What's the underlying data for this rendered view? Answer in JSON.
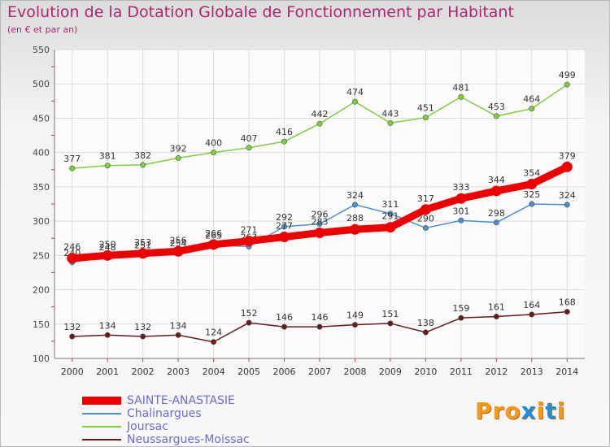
{
  "header": {
    "title": "Evolution de la Dotation Globale de Fonctionnement par Habitant",
    "subtitle": "(en € et par an)"
  },
  "logo": {
    "text": "Proxiti",
    "colors": [
      "#f39a1e",
      "#f39a1e",
      "#f39a1e",
      "#1e8fe0",
      "#f39a1e",
      "#1e8fe0",
      "#f39a1e"
    ]
  },
  "chart_data": {
    "type": "line",
    "x": [
      2000,
      2001,
      2002,
      2003,
      2004,
      2005,
      2006,
      2007,
      2008,
      2009,
      2010,
      2011,
      2012,
      2013,
      2014
    ],
    "ylim": [
      100,
      550
    ],
    "yticks": [
      100,
      150,
      200,
      250,
      300,
      350,
      400,
      450,
      500,
      550
    ],
    "grid": true,
    "legend_position": "bottom-left",
    "series": [
      {
        "name": "Neussargues-Moissac",
        "color": "#6b1a1a",
        "values": [
          132,
          134,
          132,
          134,
          124,
          152,
          146,
          146,
          149,
          151,
          138,
          159,
          161,
          164,
          168
        ]
      },
      {
        "name": "Joursac",
        "color": "#7cd13a",
        "values": [
          377,
          381,
          382,
          392,
          400,
          407,
          416,
          442,
          474,
          443,
          451,
          481,
          453,
          464,
          499
        ]
      },
      {
        "name": "Chalinargues",
        "color": "#4a90d0",
        "values": [
          240,
          248,
          251,
          254,
          265,
          263,
          292,
          296,
          324,
          311,
          290,
          301,
          298,
          325,
          324
        ]
      },
      {
        "name": "SAINTE-ANASTASIE",
        "color": "#ee0000",
        "values": [
          246,
          250,
          253,
          256,
          266,
          271,
          277,
          283,
          288,
          291,
          317,
          333,
          344,
          354,
          379
        ]
      }
    ]
  },
  "legend": {
    "items": [
      {
        "label": "SAINTE-ANASTASIE",
        "color": "#ee0000"
      },
      {
        "label": "Chalinargues",
        "color": "#4a90d0"
      },
      {
        "label": "Joursac",
        "color": "#7cd13a"
      },
      {
        "label": "Neussargues-Moissac",
        "color": "#6b1a1a"
      }
    ]
  }
}
